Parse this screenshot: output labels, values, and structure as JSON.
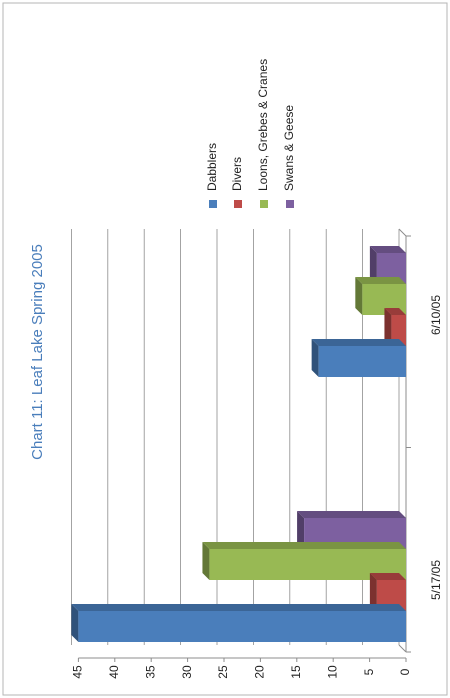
{
  "chart_data": {
    "type": "bar",
    "title": "Chart 11: Leaf Lake Spring 2005",
    "xlabel": "",
    "ylabel": "",
    "categories": [
      "5/17/05",
      "6/10/05"
    ],
    "series": [
      {
        "name": "Dabblers",
        "values": [
          45,
          12
        ],
        "color": "#4a7ebb"
      },
      {
        "name": "Divers",
        "values": [
          4,
          2
        ],
        "color": "#be4b48"
      },
      {
        "name": "Loons, Grebes & Cranes",
        "values": [
          27,
          6
        ],
        "color": "#98b954"
      },
      {
        "name": "Swans & Geese",
        "values": [
          14,
          4
        ],
        "color": "#7d60a0"
      }
    ],
    "ylim": [
      0,
      45
    ],
    "yticks": [
      0,
      5,
      10,
      15,
      20,
      25,
      30,
      35,
      40,
      45
    ],
    "yticklabels": [
      "0",
      "5",
      "10",
      "15",
      "20",
      "25",
      "30",
      "35",
      "40",
      "45"
    ],
    "grid": true,
    "legend_position": "top",
    "orientation": "page rotated 90 degrees counter-clockwise",
    "style": "3D clustered column"
  }
}
